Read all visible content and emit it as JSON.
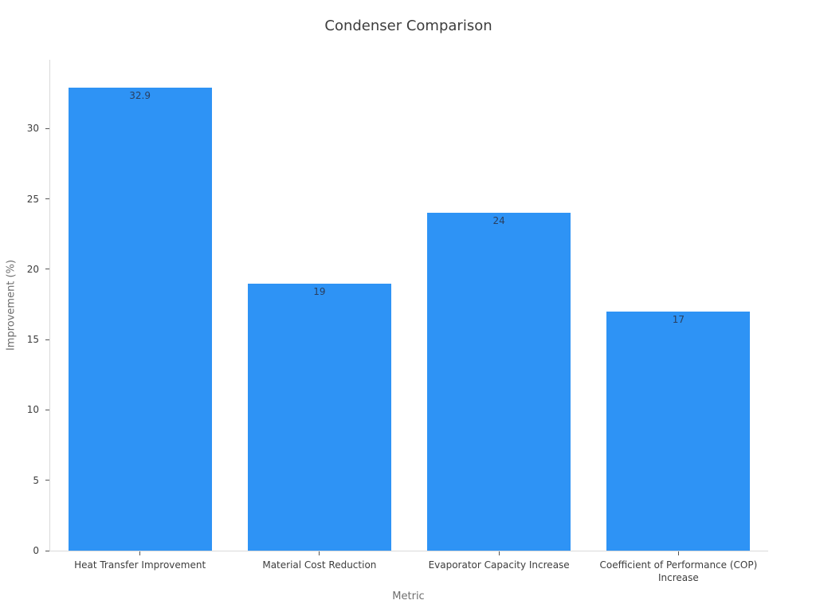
{
  "chart_data": {
    "type": "bar",
    "title": "Condenser Comparison",
    "xlabel": "Metric",
    "ylabel": "Improvement (%)",
    "categories": [
      "Heat Transfer Improvement",
      "Material Cost Reduction",
      "Evaporator Capacity Increase",
      "Coefficient of Performance (COP) Increase"
    ],
    "values": [
      32.9,
      19,
      24,
      17
    ],
    "value_labels": [
      "32.9",
      "19",
      "24",
      "17"
    ],
    "yticks": [
      0,
      5,
      10,
      15,
      20,
      25,
      30
    ],
    "ylim": [
      0,
      34.9
    ],
    "grid": false,
    "legend": false,
    "value_label_position": "inside-top",
    "bar_width_fraction": 0.8,
    "colors": {
      "bar": "#2e93f5",
      "value_label": "#2a3f5f",
      "axis_line": "#d9d9d9",
      "tick_mark": "#555555",
      "tick_label": "#3d3d3d",
      "axis_title": "#6e6e6e",
      "title": "#3d3d3d",
      "background": "#ffffff"
    }
  }
}
